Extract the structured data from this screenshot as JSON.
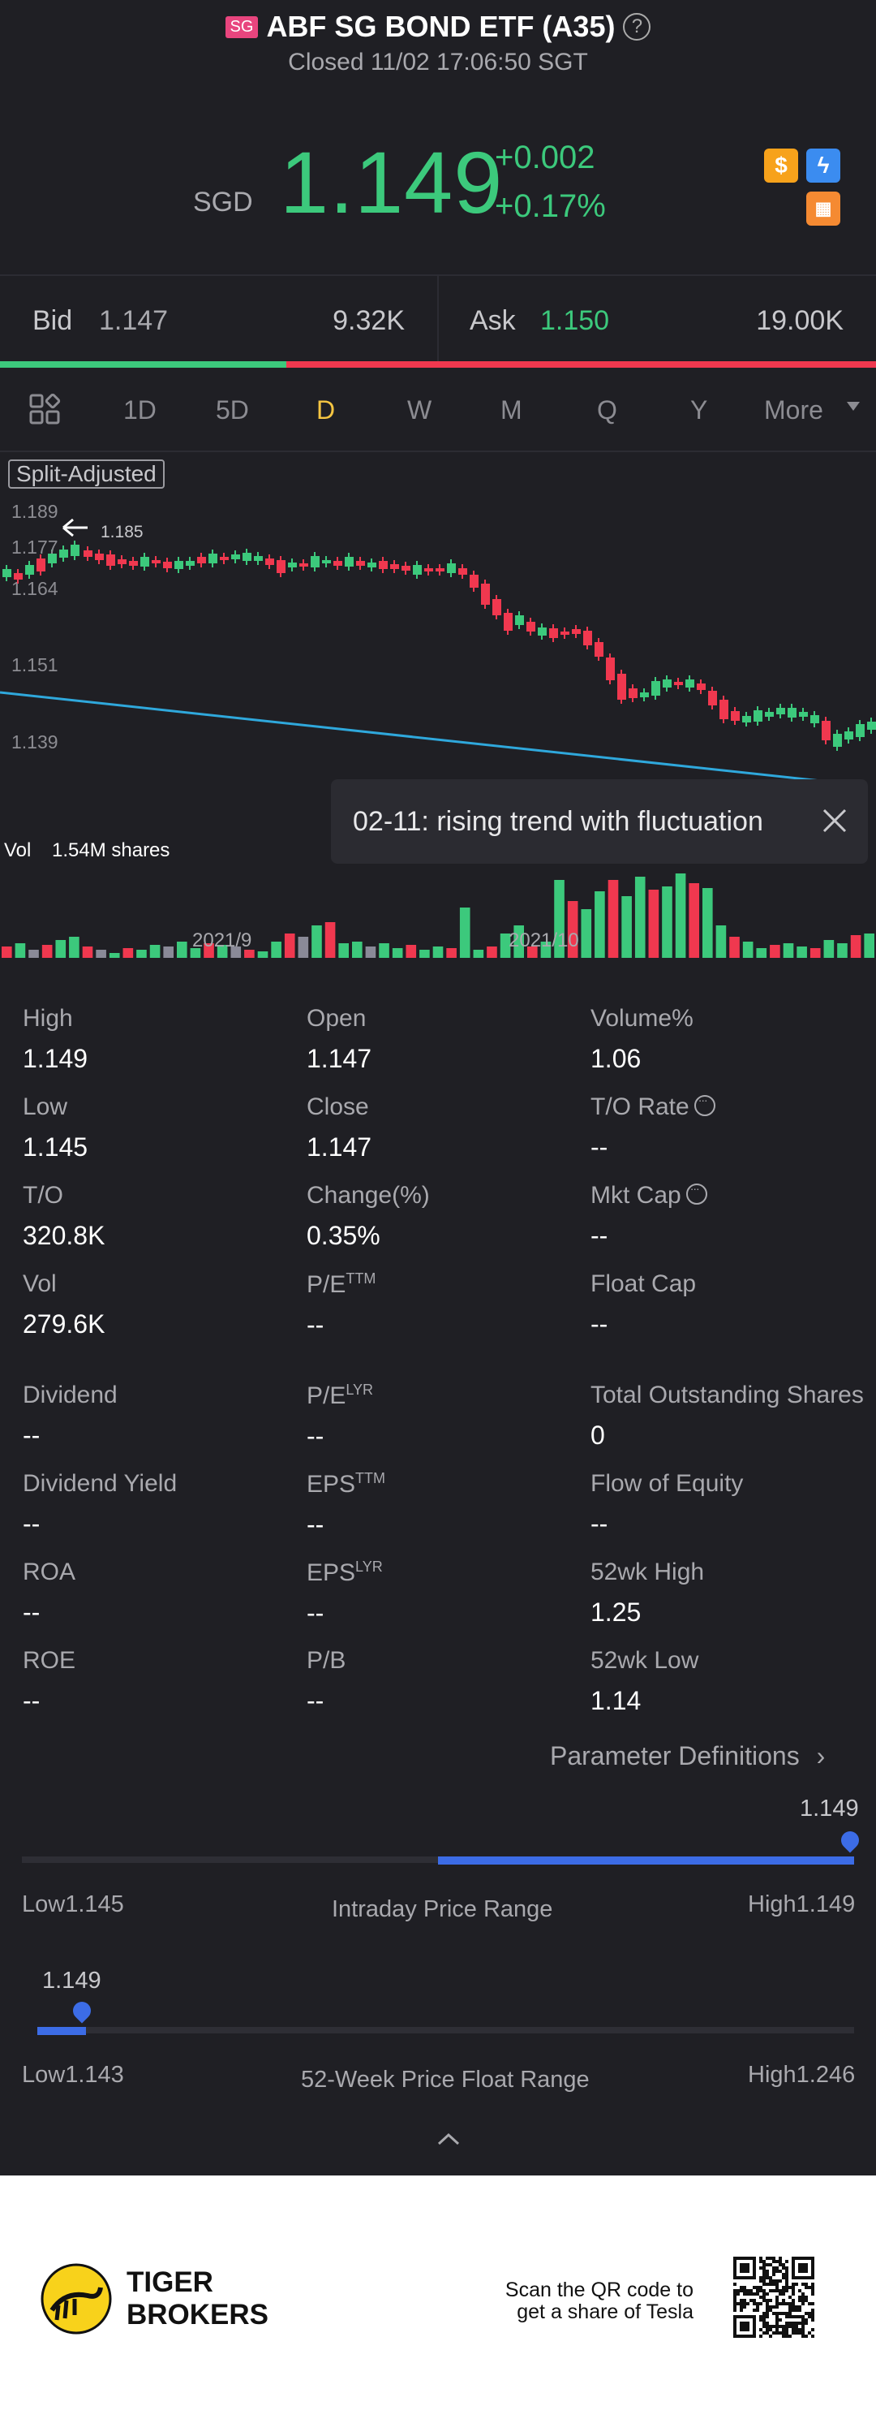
{
  "header": {
    "badge": "SG",
    "title": "ABF SG BOND ETF (A35)",
    "status": "Closed 11/02 17:06:50 SGT"
  },
  "quote": {
    "currency": "SGD",
    "price": "1.149",
    "change": "+0.002",
    "change_pct": "+0.17%",
    "icons": [
      "dollar-icon",
      "flash-icon",
      "chart-icon"
    ]
  },
  "bid": {
    "label": "Bid",
    "price": "1.147",
    "size": "9.32K"
  },
  "ask": {
    "label": "Ask",
    "price": "1.150",
    "size": "19.00K"
  },
  "bid_ratio": 0.327,
  "tabs": [
    "1D",
    "5D",
    "D",
    "W",
    "M",
    "Q",
    "Y",
    "More"
  ],
  "active_tab": "D",
  "chart": {
    "split_label": "Split-Adjusted",
    "y_labels": [
      "1.189",
      "1.177",
      "1.164",
      "1.151",
      "1.139"
    ],
    "high_marker": "1.185",
    "vol_label": "Vol",
    "vol_value": "1.54M shares",
    "x_labels": [
      "2021/9",
      "2021/10"
    ],
    "tooltip": "02-11: rising trend with fluctuation"
  },
  "stats": [
    {
      "k": "High",
      "v": "1.149"
    },
    {
      "k": "Open",
      "v": "1.147"
    },
    {
      "k": "Volume%",
      "v": "1.06"
    },
    {
      "k": "Low",
      "v": "1.145"
    },
    {
      "k": "Close",
      "v": "1.147"
    },
    {
      "k": "T/O Rate",
      "v": "--"
    },
    {
      "k": "T/O",
      "v": "320.8K"
    },
    {
      "k": "Change(%)",
      "v": "0.35%"
    },
    {
      "k": "Mkt Cap",
      "v": "--"
    },
    {
      "k": "Vol",
      "v": "279.6K"
    },
    {
      "k": "P/E",
      "sup": "TTM",
      "v": "--"
    },
    {
      "k": "Float Cap",
      "v": "--"
    },
    {
      "k": "Dividend",
      "v": "--"
    },
    {
      "k": "P/E",
      "sup": "LYR",
      "v": "--"
    },
    {
      "k": "Total Outstanding Shares",
      "v": "0"
    },
    {
      "k": "Dividend Yield",
      "v": "--"
    },
    {
      "k": "EPS",
      "sup": "TTM",
      "v": "--"
    },
    {
      "k": "Flow of Equity",
      "v": "--"
    },
    {
      "k": "ROA",
      "v": "--"
    },
    {
      "k": "EPS",
      "sup": "LYR",
      "v": "--"
    },
    {
      "k": "52wk High",
      "v": "1.25"
    },
    {
      "k": "ROE",
      "v": "--"
    },
    {
      "k": "P/B",
      "v": "--"
    },
    {
      "k": "52wk Low",
      "v": "1.14"
    }
  ],
  "param_link": "Parameter Definitions",
  "intraday": {
    "marker": "1.149",
    "low": "Low1.145",
    "title": "Intraday Price Range",
    "high": "High1.149",
    "fill_start": 0.5,
    "fill_end": 1.0
  },
  "week52": {
    "marker": "1.149",
    "low": "Low1.143",
    "title": "52-Week Price Float Range",
    "high": "High1.246",
    "fill": 0.06
  },
  "footer": {
    "brand_line1": "TIGER",
    "brand_line2": "BROKERS",
    "qr_text_line1": "Scan the QR code to",
    "qr_text_line2": "get a share of Tesla"
  },
  "colors": {
    "up": "#3cc97c",
    "down": "#f0384f",
    "accent": "#f5c542",
    "range": "#3c6ce6"
  }
}
